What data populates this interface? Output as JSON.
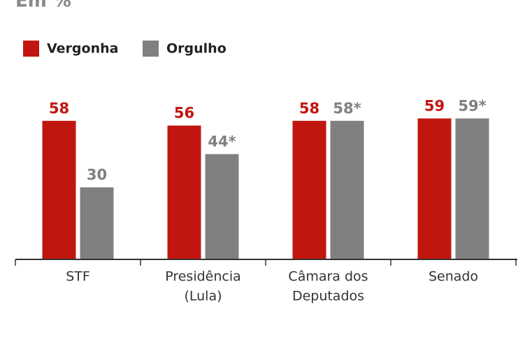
{
  "chart_data": {
    "type": "bar",
    "subtitle": "Em %",
    "categories": [
      [
        "STF"
      ],
      [
        "Presidência",
        "(Lula)"
      ],
      [
        "Câmara dos",
        "Deputados"
      ],
      [
        "Senado"
      ]
    ],
    "series": [
      {
        "name": "Vergonha",
        "color": "#c1160f",
        "values": [
          58,
          56,
          58,
          59
        ]
      },
      {
        "name": "Orgulho",
        "color": "#808080",
        "values": [
          30,
          44,
          58,
          59
        ],
        "value_labels": [
          "30",
          "44*",
          "58*",
          "59*"
        ]
      }
    ]
  }
}
